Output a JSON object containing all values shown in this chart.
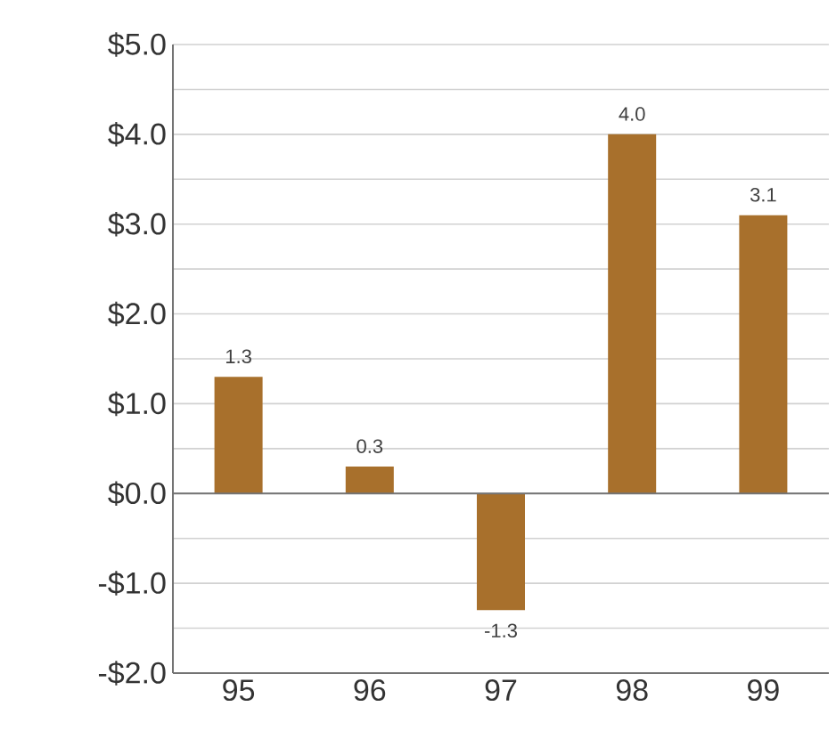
{
  "chart_data": {
    "type": "bar",
    "categories": [
      "95",
      "96",
      "97",
      "98",
      "99"
    ],
    "values": [
      1.3,
      0.3,
      -1.3,
      4.0,
      3.1
    ],
    "value_labels": [
      "1.3",
      "0.3",
      "-1.3",
      "4.0",
      "3.1"
    ],
    "color": "#a8702c",
    "ylim": [
      -2.0,
      5.0
    ],
    "yticks": [
      {
        "value": -2.0,
        "label": "-$2.0"
      },
      {
        "value": -1.5,
        "label": null
      },
      {
        "value": -1.0,
        "label": "-$1.0"
      },
      {
        "value": -0.5,
        "label": null
      },
      {
        "value": 0.0,
        "label": "$0.0"
      },
      {
        "value": 0.5,
        "label": null
      },
      {
        "value": 1.0,
        "label": "$1.0"
      },
      {
        "value": 1.5,
        "label": null
      },
      {
        "value": 2.0,
        "label": "$2.0"
      },
      {
        "value": 2.5,
        "label": null
      },
      {
        "value": 3.0,
        "label": "$3.0"
      },
      {
        "value": 3.5,
        "label": null
      },
      {
        "value": 4.0,
        "label": "$4.0"
      },
      {
        "value": 4.5,
        "label": null
      },
      {
        "value": 5.0,
        "label": "$5.0"
      }
    ],
    "grid": "y"
  }
}
